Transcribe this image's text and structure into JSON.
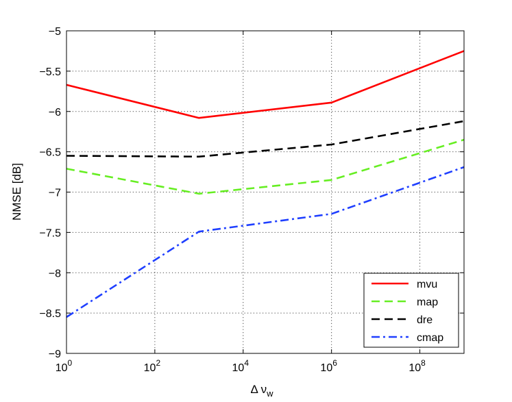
{
  "chart_data": {
    "type": "line",
    "title": "",
    "xlabel": "Δ ν",
    "xlabel_sub": "w",
    "ylabel": "NMSE [dB]",
    "xscale": "log",
    "xlim": [
      1,
      1000000000
    ],
    "ylim": [
      -9,
      -5
    ],
    "grid": true,
    "legend_position": "bottom-right",
    "x_ticks": [
      {
        "base": "10",
        "exp": "0",
        "value": 1
      },
      {
        "base": "10",
        "exp": "2",
        "value": 100
      },
      {
        "base": "10",
        "exp": "4",
        "value": 10000
      },
      {
        "base": "10",
        "exp": "6",
        "value": 1000000
      },
      {
        "base": "10",
        "exp": "8",
        "value": 100000000
      }
    ],
    "y_ticks": [
      {
        "label": "−5",
        "value": -5
      },
      {
        "label": "−5.5",
        "value": -5.5
      },
      {
        "label": "−6",
        "value": -6
      },
      {
        "label": "−6.5",
        "value": -6.5
      },
      {
        "label": "−7",
        "value": -7
      },
      {
        "label": "−7.5",
        "value": -7.5
      },
      {
        "label": "−8",
        "value": -8
      },
      {
        "label": "−8.5",
        "value": -8.5
      },
      {
        "label": "−9",
        "value": -9
      }
    ],
    "x": [
      1,
      1000,
      1000000,
      1000000000
    ],
    "series": [
      {
        "name": "mvu",
        "values": [
          -5.67,
          -6.08,
          -5.89,
          -5.25
        ],
        "color": "#ff0000",
        "dash": "solid"
      },
      {
        "name": "map",
        "values": [
          -6.71,
          -7.02,
          -6.85,
          -6.35
        ],
        "color": "#66ee22",
        "dash": "dashed"
      },
      {
        "name": "dre",
        "values": [
          -6.55,
          -6.56,
          -6.41,
          -6.12
        ],
        "color": "#000000",
        "dash": "dashed"
      },
      {
        "name": "cmap",
        "values": [
          -8.55,
          -7.49,
          -7.27,
          -6.69
        ],
        "color": "#1f3fff",
        "dash": "dashdot"
      }
    ]
  }
}
